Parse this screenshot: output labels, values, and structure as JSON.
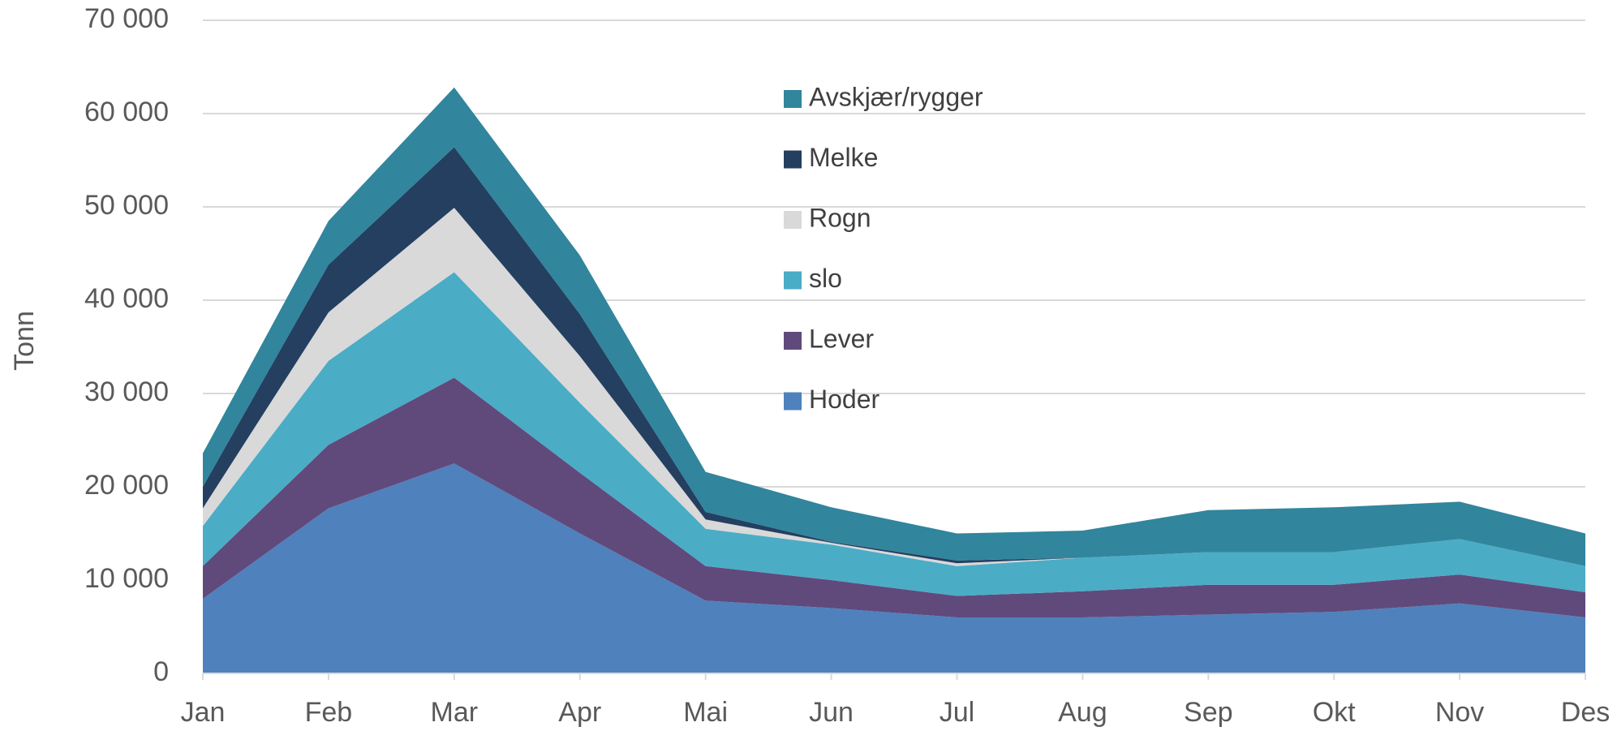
{
  "chart_data": {
    "type": "stacked_area",
    "ylabel": "Tonn",
    "categories": [
      "Jan",
      "Feb",
      "Mar",
      "Apr",
      "Mai",
      "Jun",
      "Jul",
      "Aug",
      "Sep",
      "Okt",
      "Nov",
      "Des"
    ],
    "series": [
      {
        "name": "Hoder",
        "color": "#4f81bd",
        "values": [
          8000,
          17700,
          22500,
          15000,
          7800,
          7000,
          6000,
          6000,
          6300,
          6600,
          7500,
          6000
        ]
      },
      {
        "name": "Lever",
        "color": "#604a7b",
        "values": [
          3500,
          6800,
          9200,
          6500,
          3700,
          3000,
          2300,
          2800,
          3200,
          2900,
          3100,
          2700
        ]
      },
      {
        "name": "slo",
        "color": "#4bacc6",
        "values": [
          4300,
          9000,
          11300,
          7500,
          4000,
          3800,
          3200,
          3600,
          3500,
          3500,
          3800,
          2800
        ]
      },
      {
        "name": "Rogn",
        "color": "#d9d9d9",
        "values": [
          1900,
          5200,
          6900,
          5000,
          1000,
          200,
          300,
          0,
          0,
          0,
          0,
          0
        ]
      },
      {
        "name": "Melke",
        "color": "#243f60",
        "values": [
          2300,
          5100,
          6500,
          4500,
          800,
          100,
          300,
          0,
          0,
          0,
          0,
          0
        ]
      },
      {
        "name": "Avskjær/rygger",
        "color": "#31859c",
        "values": [
          3600,
          4700,
          6400,
          6300,
          4300,
          3700,
          2900,
          2900,
          4500,
          4800,
          4000,
          3500
        ]
      }
    ],
    "ylim": [
      0,
      70000
    ],
    "yticks": [
      0,
      {
        "value": 10000,
        "label": "10 000"
      },
      {
        "value": 20000,
        "label": "20 000"
      },
      {
        "value": 30000,
        "label": "30 000"
      },
      {
        "value": 40000,
        "label": "40 000"
      },
      {
        "value": 50000,
        "label": "50 000"
      },
      {
        "value": 60000,
        "label": "60 000"
      },
      {
        "value": 70000,
        "label": "70 000"
      }
    ],
    "grid": true
  }
}
